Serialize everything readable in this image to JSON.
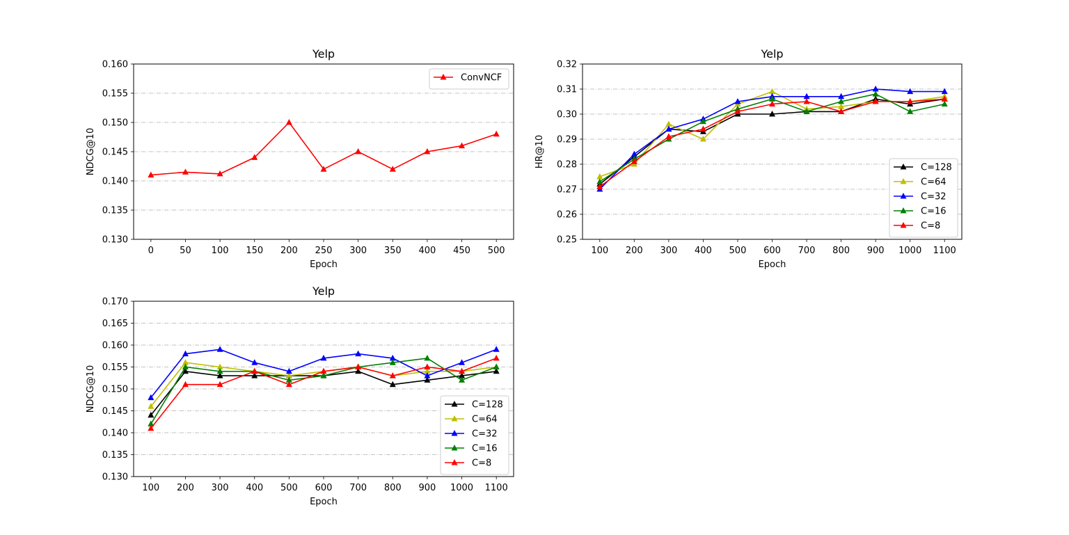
{
  "colors": {
    "C=128": "#000000",
    "C=64": "#bfbf00",
    "C=32": "#0000ff",
    "C=16": "#008000",
    "C=8": "#ff0000",
    "ConvNCF": "#ff0000",
    "grid": "#b0b0b0"
  },
  "chart_data": [
    {
      "type": "line",
      "title": "Yelp",
      "xlabel": "Epoch",
      "ylabel": "NDCG@10",
      "x": [
        0,
        50,
        100,
        150,
        200,
        250,
        300,
        350,
        400,
        450,
        500
      ],
      "xticks": [
        "0",
        "50",
        "100",
        "150",
        "200",
        "250",
        "300",
        "350",
        "400",
        "450",
        "500"
      ],
      "ylim": [
        0.13,
        0.16
      ],
      "yticks": [
        "0.130",
        "0.135",
        "0.140",
        "0.145",
        "0.150",
        "0.155",
        "0.160"
      ],
      "legend_position": "upper-right",
      "grid": "horizontal dash-dot",
      "series": [
        {
          "name": "ConvNCF",
          "values": [
            0.141,
            0.1415,
            0.1412,
            0.144,
            0.15,
            0.142,
            0.145,
            0.142,
            0.145,
            0.146,
            0.148
          ]
        }
      ]
    },
    {
      "type": "line",
      "title": "Yelp",
      "xlabel": "Epoch",
      "ylabel": "HR@10",
      "x": [
        100,
        200,
        300,
        400,
        500,
        600,
        700,
        800,
        900,
        1000,
        1100
      ],
      "xticks": [
        "100",
        "200",
        "300",
        "400",
        "500",
        "600",
        "700",
        "800",
        "900",
        "1000",
        "1100"
      ],
      "ylim": [
        0.25,
        0.32
      ],
      "yticks": [
        "0.25",
        "0.26",
        "0.27",
        "0.28",
        "0.29",
        "0.30",
        "0.31",
        "0.32"
      ],
      "legend_position": "lower-right",
      "grid": "horizontal dash-dot",
      "series": [
        {
          "name": "C=128",
          "values": [
            0.272,
            0.283,
            0.294,
            0.293,
            0.3,
            0.3,
            0.301,
            0.301,
            0.306,
            0.304,
            0.306
          ]
        },
        {
          "name": "C=64",
          "values": [
            0.275,
            0.28,
            0.296,
            0.29,
            0.304,
            0.309,
            0.302,
            0.303,
            0.305,
            0.305,
            0.307
          ]
        },
        {
          "name": "C=32",
          "values": [
            0.27,
            0.284,
            0.294,
            0.298,
            0.305,
            0.307,
            0.307,
            0.307,
            0.31,
            0.309,
            0.309
          ]
        },
        {
          "name": "C=16",
          "values": [
            0.273,
            0.282,
            0.29,
            0.297,
            0.302,
            0.306,
            0.301,
            0.305,
            0.308,
            0.301,
            0.304
          ]
        },
        {
          "name": "C=8",
          "values": [
            0.271,
            0.281,
            0.291,
            0.294,
            0.301,
            0.304,
            0.305,
            0.301,
            0.305,
            0.305,
            0.306
          ]
        }
      ]
    },
    {
      "type": "line",
      "title": "Yelp",
      "xlabel": "Epoch",
      "ylabel": "NDCG@10",
      "x": [
        100,
        200,
        300,
        400,
        500,
        600,
        700,
        800,
        900,
        1000,
        1100
      ],
      "xticks": [
        "100",
        "200",
        "300",
        "400",
        "500",
        "600",
        "700",
        "800",
        "900",
        "1000",
        "1100"
      ],
      "ylim": [
        0.13,
        0.17
      ],
      "yticks": [
        "0.130",
        "0.135",
        "0.140",
        "0.145",
        "0.150",
        "0.155",
        "0.160",
        "0.165",
        "0.170"
      ],
      "legend_position": "lower-right",
      "grid": "horizontal dash-dot",
      "series": [
        {
          "name": "C=128",
          "values": [
            0.144,
            0.154,
            0.153,
            0.153,
            0.153,
            0.153,
            0.154,
            0.151,
            0.152,
            0.153,
            0.154
          ]
        },
        {
          "name": "C=64",
          "values": [
            0.146,
            0.156,
            0.155,
            0.154,
            0.153,
            0.154,
            0.155,
            0.153,
            0.154,
            0.154,
            0.155
          ]
        },
        {
          "name": "C=32",
          "values": [
            0.148,
            0.158,
            0.159,
            0.156,
            0.154,
            0.157,
            0.158,
            0.157,
            0.153,
            0.156,
            0.159
          ]
        },
        {
          "name": "C=16",
          "values": [
            0.142,
            0.155,
            0.154,
            0.154,
            0.152,
            0.153,
            0.155,
            0.156,
            0.157,
            0.152,
            0.155
          ]
        },
        {
          "name": "C=8",
          "values": [
            0.141,
            0.151,
            0.151,
            0.154,
            0.151,
            0.154,
            0.155,
            0.153,
            0.155,
            0.154,
            0.157
          ]
        }
      ]
    }
  ]
}
